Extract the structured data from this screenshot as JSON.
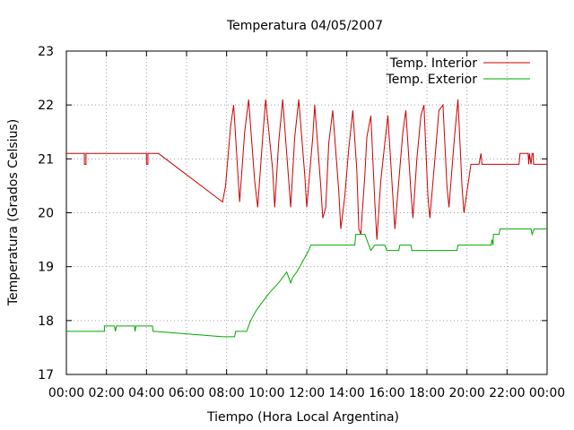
{
  "chart_data": {
    "type": "line",
    "title": "Temperatura 04/05/2007",
    "xlabel": "Tiempo (Hora Local Argentina)",
    "ylabel": "Temperatura (Grados Celsius)",
    "xlim": [
      0,
      24
    ],
    "ylim": [
      17,
      23
    ],
    "x_unit": "hours",
    "grid": true,
    "legend_position": "top-right",
    "x_ticks": [
      "00:00",
      "02:00",
      "04:00",
      "06:00",
      "08:00",
      "10:00",
      "12:00",
      "14:00",
      "16:00",
      "18:00",
      "20:00",
      "22:00",
      "00:00"
    ],
    "y_ticks": [
      "17",
      "18",
      "19",
      "20",
      "21",
      "22",
      "23"
    ],
    "series": [
      {
        "name": "Temp. Interior",
        "color": "#cc0000",
        "points": [
          [
            0.0,
            21.1
          ],
          [
            0.9,
            21.1
          ],
          [
            0.9,
            20.9
          ],
          [
            0.98,
            20.9
          ],
          [
            0.98,
            21.1
          ],
          [
            4.0,
            21.1
          ],
          [
            4.0,
            20.9
          ],
          [
            4.07,
            20.9
          ],
          [
            4.07,
            21.1
          ],
          [
            4.6,
            21.1
          ],
          [
            7.8,
            20.2
          ],
          [
            7.95,
            20.5
          ],
          [
            8.2,
            21.6
          ],
          [
            8.35,
            22.0
          ],
          [
            8.65,
            20.2
          ],
          [
            8.9,
            21.5
          ],
          [
            9.1,
            22.1
          ],
          [
            9.4,
            20.6
          ],
          [
            9.55,
            20.1
          ],
          [
            9.8,
            21.4
          ],
          [
            9.95,
            22.1
          ],
          [
            10.3,
            20.8
          ],
          [
            10.4,
            20.1
          ],
          [
            10.6,
            21.3
          ],
          [
            10.8,
            22.1
          ],
          [
            11.1,
            20.6
          ],
          [
            11.2,
            20.1
          ],
          [
            11.4,
            21.4
          ],
          [
            11.6,
            22.1
          ],
          [
            11.9,
            20.7
          ],
          [
            12.0,
            20.1
          ],
          [
            12.3,
            21.4
          ],
          [
            12.4,
            22.0
          ],
          [
            12.7,
            20.5
          ],
          [
            12.8,
            19.9
          ],
          [
            12.95,
            20.1
          ],
          [
            13.1,
            21.3
          ],
          [
            13.3,
            21.9
          ],
          [
            13.6,
            20.4
          ],
          [
            13.7,
            19.7
          ],
          [
            13.9,
            20.3
          ],
          [
            14.1,
            21.2
          ],
          [
            14.3,
            21.9
          ],
          [
            14.5,
            20.8
          ],
          [
            14.6,
            19.7
          ],
          [
            14.7,
            19.6
          ],
          [
            14.9,
            20.7
          ],
          [
            15.0,
            21.4
          ],
          [
            15.2,
            21.8
          ],
          [
            15.4,
            20.2
          ],
          [
            15.5,
            19.5
          ],
          [
            15.7,
            20.6
          ],
          [
            15.9,
            21.3
          ],
          [
            16.05,
            21.8
          ],
          [
            16.3,
            20.3
          ],
          [
            16.4,
            19.7
          ],
          [
            16.6,
            20.6
          ],
          [
            16.8,
            21.5
          ],
          [
            16.95,
            21.9
          ],
          [
            17.2,
            20.4
          ],
          [
            17.3,
            19.9
          ],
          [
            17.5,
            21.0
          ],
          [
            17.7,
            21.8
          ],
          [
            17.85,
            22.0
          ],
          [
            18.05,
            20.3
          ],
          [
            18.15,
            19.9
          ],
          [
            18.4,
            21.0
          ],
          [
            18.6,
            21.9
          ],
          [
            18.8,
            22.0
          ],
          [
            19.0,
            20.5
          ],
          [
            19.1,
            20.1
          ],
          [
            19.35,
            21.3
          ],
          [
            19.55,
            22.1
          ],
          [
            19.75,
            20.5
          ],
          [
            19.85,
            20.0
          ],
          [
            20.0,
            20.4
          ],
          [
            20.2,
            20.9
          ],
          [
            20.6,
            20.9
          ],
          [
            20.7,
            21.1
          ],
          [
            20.75,
            20.9
          ],
          [
            22.6,
            20.9
          ],
          [
            22.65,
            21.1
          ],
          [
            23.05,
            21.1
          ],
          [
            23.08,
            20.9
          ],
          [
            23.12,
            21.1
          ],
          [
            23.2,
            20.9
          ],
          [
            23.25,
            21.1
          ],
          [
            23.3,
            21.1
          ],
          [
            23.33,
            20.9
          ],
          [
            24.0,
            20.9
          ]
        ]
      },
      {
        "name": "Temp. Exterior",
        "color": "#00aa00",
        "points": [
          [
            0.0,
            17.8
          ],
          [
            1.9,
            17.8
          ],
          [
            1.9,
            17.9
          ],
          [
            2.4,
            17.9
          ],
          [
            2.45,
            17.8
          ],
          [
            2.5,
            17.9
          ],
          [
            3.4,
            17.9
          ],
          [
            3.43,
            17.8
          ],
          [
            3.47,
            17.9
          ],
          [
            4.3,
            17.9
          ],
          [
            4.33,
            17.8
          ],
          [
            4.4,
            17.8
          ],
          [
            7.8,
            17.7
          ],
          [
            8.4,
            17.7
          ],
          [
            8.45,
            17.8
          ],
          [
            9.0,
            17.8
          ],
          [
            9.1,
            17.9
          ],
          [
            9.2,
            18.0
          ],
          [
            9.35,
            18.1
          ],
          [
            9.5,
            18.2
          ],
          [
            9.7,
            18.3
          ],
          [
            9.9,
            18.4
          ],
          [
            10.1,
            18.5
          ],
          [
            10.35,
            18.6
          ],
          [
            10.6,
            18.7
          ],
          [
            10.8,
            18.8
          ],
          [
            11.0,
            18.9
          ],
          [
            11.1,
            18.8
          ],
          [
            11.2,
            18.7
          ],
          [
            11.3,
            18.8
          ],
          [
            11.5,
            18.9
          ],
          [
            11.65,
            19.0
          ],
          [
            11.8,
            19.1
          ],
          [
            11.95,
            19.2
          ],
          [
            12.1,
            19.3
          ],
          [
            12.2,
            19.4
          ],
          [
            14.4,
            19.4
          ],
          [
            14.45,
            19.6
          ],
          [
            14.9,
            19.6
          ],
          [
            15.0,
            19.5
          ],
          [
            15.1,
            19.4
          ],
          [
            15.2,
            19.3
          ],
          [
            15.4,
            19.4
          ],
          [
            15.9,
            19.4
          ],
          [
            16.0,
            19.3
          ],
          [
            16.6,
            19.3
          ],
          [
            16.65,
            19.4
          ],
          [
            17.2,
            19.4
          ],
          [
            17.25,
            19.3
          ],
          [
            19.5,
            19.3
          ],
          [
            19.55,
            19.4
          ],
          [
            21.2,
            19.4
          ],
          [
            21.25,
            19.5
          ],
          [
            21.3,
            19.4
          ],
          [
            21.32,
            19.6
          ],
          [
            21.6,
            19.6
          ],
          [
            21.65,
            19.7
          ],
          [
            23.2,
            19.7
          ],
          [
            23.25,
            19.6
          ],
          [
            23.35,
            19.7
          ],
          [
            24.0,
            19.7
          ]
        ]
      }
    ]
  }
}
